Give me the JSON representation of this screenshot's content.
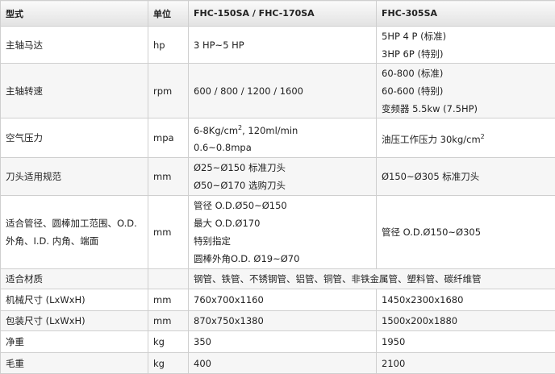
{
  "table": {
    "header": [
      "型式",
      "单位",
      "FHC-150SA / FHC-170SA",
      "FHC-305SA"
    ],
    "rows": [
      {
        "label": "主轴马达",
        "unit": "hp",
        "col1": [
          "3 HP~5 HP"
        ],
        "col2": [
          "5HP 4 P (标准)",
          "3HP 6P (特别)"
        ]
      },
      {
        "label": "主轴转速",
        "unit": "rpm",
        "col1": [
          "600 / 800 / 1200 / 1600"
        ],
        "col2": [
          "60-800 (标准)",
          "60-600 (特别)",
          "变频器 5.5kw (7.5HP)"
        ]
      },
      {
        "label": "空气压力",
        "unit": "mpa",
        "col1": [
          [
            "6-8Kg/cm",
            {
              "sup": "2"
            },
            ", 120ml/min"
          ],
          "0.6~0.8mpa"
        ],
        "col2": [
          [
            "油压工作压力 30kg/cm",
            {
              "sup": "2"
            }
          ]
        ]
      },
      {
        "label": "刀头适用规范",
        "unit": "mm",
        "col1": [
          "Ø25~Ø150 标准刀头",
          "Ø50~Ø170 选购刀头"
        ],
        "col2": [
          "Ø150~Ø305 标准刀头"
        ]
      },
      {
        "label": "适合管径、圆棒加工范围、O.D. 外角、I.D. 内角、端面",
        "unit": "mm",
        "col1": [
          "管径 O.D.Ø50~Ø150",
          "最大 O.D.Ø170",
          "特别指定",
          "圆棒外角O.D. Ø19~Ø70"
        ],
        "col2": [
          "管径 O.D.Ø150~Ø305"
        ]
      },
      {
        "label": "适合材质",
        "merged": "钢管、铁管、不锈钢管、铝管、铜管、非铁金属管、塑料管、碳纤维管"
      },
      {
        "label": "机械尺寸 (LxWxH)",
        "unit": "mm",
        "col1": [
          "760x700x1160"
        ],
        "col2": [
          "1450x2300x1680"
        ]
      },
      {
        "label": "包装尺寸 (LxWxH)",
        "unit": "mm",
        "col1": [
          "870x750x1380"
        ],
        "col2": [
          "1500x200x1880"
        ]
      },
      {
        "label": "净重",
        "unit": "kg",
        "col1": [
          "350"
        ],
        "col2": [
          "1950"
        ]
      },
      {
        "label": "毛重",
        "unit": "kg",
        "col1": [
          "400"
        ],
        "col2": [
          "2100"
        ]
      }
    ]
  }
}
